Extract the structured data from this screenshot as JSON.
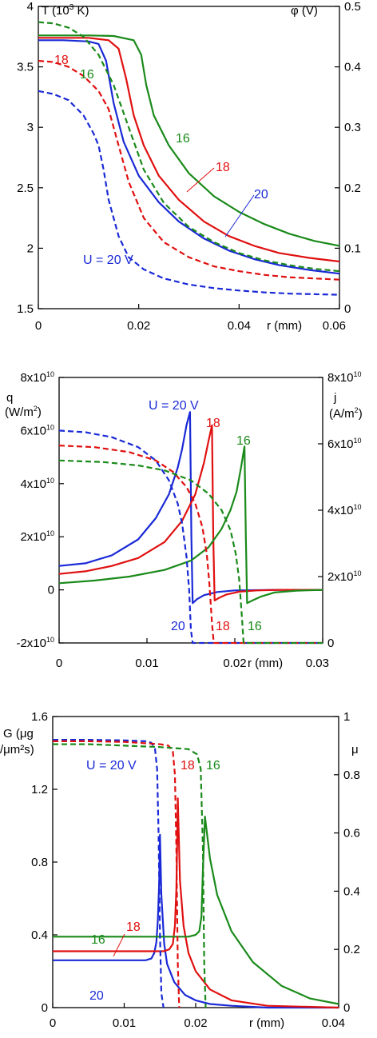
{
  "chart_data": [
    {
      "type": "line",
      "left_axis": {
        "label_parts": [
          "T (10",
          "3",
          " K)"
        ],
        "range": [
          1.5,
          4
        ],
        "ticks": [
          "1.5",
          "2",
          "2.5",
          "3",
          "3.5",
          "4"
        ]
      },
      "right_axis": {
        "label": "φ (V)",
        "range": [
          0,
          0.5
        ],
        "ticks": [
          "0",
          "0.1",
          "0.2",
          "0.3",
          "0.4",
          "0.5"
        ]
      },
      "x_axis": {
        "label": "r (mm)",
        "range": [
          0,
          0.06
        ],
        "ticks": [
          "0",
          "0.02",
          "0.04",
          "0.06"
        ]
      },
      "series": [
        {
          "name": "16",
          "quantity": "T",
          "axis": "left",
          "color": "#1a8a1a",
          "style": "solid",
          "x": [
            0,
            0.005,
            0.01,
            0.015,
            0.019,
            0.0205,
            0.0215,
            0.023,
            0.026,
            0.03,
            0.035,
            0.04,
            0.045,
            0.05,
            0.055,
            0.06
          ],
          "y": [
            3.76,
            3.76,
            3.76,
            3.755,
            3.72,
            3.6,
            3.35,
            3.1,
            2.85,
            2.62,
            2.43,
            2.3,
            2.2,
            2.12,
            2.06,
            2.02
          ]
        },
        {
          "name": "18",
          "quantity": "T",
          "axis": "left",
          "color": "#e01010",
          "style": "solid",
          "x": [
            0,
            0.005,
            0.01,
            0.014,
            0.016,
            0.0175,
            0.019,
            0.021,
            0.024,
            0.028,
            0.033,
            0.038,
            0.043,
            0.048,
            0.054,
            0.06
          ],
          "y": [
            3.74,
            3.74,
            3.74,
            3.72,
            3.65,
            3.4,
            3.1,
            2.85,
            2.6,
            2.4,
            2.22,
            2.1,
            2.02,
            1.96,
            1.92,
            1.89
          ]
        },
        {
          "name": "20",
          "quantity": "T",
          "axis": "left",
          "color": "#1a2ad6",
          "style": "solid",
          "x": [
            0,
            0.005,
            0.01,
            0.012,
            0.0135,
            0.015,
            0.017,
            0.02,
            0.024,
            0.028,
            0.033,
            0.038,
            0.043,
            0.048,
            0.054,
            0.06
          ],
          "y": [
            3.72,
            3.72,
            3.71,
            3.69,
            3.55,
            3.2,
            2.88,
            2.6,
            2.38,
            2.22,
            2.08,
            1.98,
            1.91,
            1.86,
            1.82,
            1.79
          ]
        },
        {
          "name": "16",
          "quantity": "φ",
          "axis": "right",
          "color": "#1a8a1a",
          "style": "dashed",
          "x": [
            0,
            0.003,
            0.006,
            0.009,
            0.012,
            0.015,
            0.018,
            0.021,
            0.025,
            0.03,
            0.035,
            0.04,
            0.045,
            0.05,
            0.055,
            0.06
          ],
          "y": [
            0.474,
            0.472,
            0.465,
            0.45,
            0.42,
            0.37,
            0.3,
            0.23,
            0.175,
            0.135,
            0.11,
            0.092,
            0.08,
            0.072,
            0.066,
            0.062
          ]
        },
        {
          "name": "18",
          "quantity": "φ",
          "axis": "right",
          "color": "#e01010",
          "style": "dashed",
          "x": [
            0,
            0.003,
            0.006,
            0.009,
            0.012,
            0.014,
            0.016,
            0.018,
            0.021,
            0.025,
            0.03,
            0.035,
            0.04,
            0.045,
            0.05,
            0.055,
            0.06
          ],
          "y": [
            0.41,
            0.408,
            0.4,
            0.385,
            0.36,
            0.33,
            0.27,
            0.21,
            0.15,
            0.11,
            0.085,
            0.07,
            0.062,
            0.056,
            0.052,
            0.05,
            0.048
          ]
        },
        {
          "name": "20",
          "quantity": "φ",
          "axis": "right",
          "color": "#1a2ad6",
          "style": "dashed",
          "x": [
            0,
            0.003,
            0.006,
            0.009,
            0.011,
            0.012,
            0.013,
            0.014,
            0.016,
            0.018,
            0.021,
            0.025,
            0.03,
            0.035,
            0.04,
            0.045,
            0.05,
            0.055,
            0.06
          ],
          "y": [
            0.36,
            0.355,
            0.345,
            0.32,
            0.29,
            0.27,
            0.23,
            0.18,
            0.12,
            0.085,
            0.065,
            0.05,
            0.04,
            0.034,
            0.03,
            0.027,
            0.025,
            0.024,
            0.023
          ]
        }
      ],
      "annotations": [
        "18",
        "16",
        "16",
        "18",
        "20",
        "U = 20 V"
      ]
    },
    {
      "type": "line",
      "left_axis": {
        "label": "q",
        "unit_parts": [
          "(W/m",
          "2",
          ")"
        ],
        "range": [
          -20000000000.0,
          80000000000.0
        ],
        "ticks": [
          {
            "m": "-2x10",
            "e": "10"
          },
          {
            "m": "0",
            "e": ""
          },
          {
            "m": "2x10",
            "e": "10"
          },
          {
            "m": "4x10",
            "e": "10"
          },
          {
            "m": "6x10",
            "e": "10"
          },
          {
            "m": "8x10",
            "e": "10"
          }
        ]
      },
      "right_axis": {
        "label": "j",
        "unit_parts": [
          "(A/m",
          "2",
          ")"
        ],
        "range": [
          0,
          80000000000.0
        ],
        "ticks": [
          {
            "m": "0",
            "e": ""
          },
          {
            "m": "2x10",
            "e": "10"
          },
          {
            "m": "4x10",
            "e": "10"
          },
          {
            "m": "6x10",
            "e": "10"
          },
          {
            "m": "8x10",
            "e": "10"
          }
        ]
      },
      "x_axis": {
        "label": "r (mm)",
        "range": [
          0,
          0.03
        ],
        "ticks": [
          "0",
          "0.01",
          "0.02",
          "0.03"
        ]
      },
      "series": [
        {
          "name": "20",
          "quantity": "q",
          "axis": "left",
          "color": "#1a2ad6",
          "style": "solid",
          "x": [
            0,
            0.003,
            0.006,
            0.009,
            0.011,
            0.0125,
            0.0135,
            0.014,
            0.0145,
            0.0149,
            0.01505,
            0.0152,
            0.0157,
            0.0165,
            0.018,
            0.02,
            0.025,
            0.03
          ],
          "y": [
            9000000000.0,
            10000000000.0,
            13000000000.0,
            19000000000.0,
            27000000000.0,
            36000000000.0,
            46000000000.0,
            53000000000.0,
            62000000000.0,
            67000000000.0,
            20000000000.0,
            -5000000000.0,
            -3500000000.0,
            -2000000000.0,
            -800000000.0,
            -200000000.0,
            0,
            0
          ]
        },
        {
          "name": "18",
          "quantity": "q",
          "axis": "left",
          "color": "#e01010",
          "style": "solid",
          "x": [
            0,
            0.003,
            0.006,
            0.009,
            0.012,
            0.014,
            0.0155,
            0.0165,
            0.017,
            0.0174,
            0.01755,
            0.0177,
            0.0182,
            0.019,
            0.0205,
            0.0225,
            0.025,
            0.03
          ],
          "y": [
            6000000000.0,
            7000000000.0,
            9000000000.0,
            12000000000.0,
            18000000000.0,
            26000000000.0,
            36000000000.0,
            48000000000.0,
            56000000000.0,
            62000000000.0,
            20000000000.0,
            -4000000000.0,
            -3000000000.0,
            -1800000000.0,
            -700000000.0,
            -200000000.0,
            0,
            0
          ]
        },
        {
          "name": "16",
          "quantity": "q",
          "axis": "left",
          "color": "#1a8a1a",
          "style": "solid",
          "x": [
            0,
            0.004,
            0.008,
            0.012,
            0.015,
            0.017,
            0.0185,
            0.0195,
            0.0202,
            0.0207,
            0.0211,
            0.02125,
            0.0214,
            0.022,
            0.023,
            0.0245,
            0.027,
            0.03
          ],
          "y": [
            2500000000.0,
            3500000000.0,
            5000000000.0,
            7500000000.0,
            11000000000.0,
            16000000000.0,
            23000000000.0,
            30000000000.0,
            37000000000.0,
            46000000000.0,
            54000000000.0,
            20000000000.0,
            -5000000000.0,
            -4000000000.0,
            -2500000000.0,
            -1000000000.0,
            -300000000.0,
            0
          ]
        },
        {
          "name": "20",
          "quantity": "j",
          "axis": "right",
          "color": "#1a2ad6",
          "style": "dashed",
          "x": [
            0,
            0.003,
            0.006,
            0.009,
            0.011,
            0.0125,
            0.0135,
            0.014,
            0.0145,
            0.0148,
            0.015,
            0.0152,
            0.02,
            0.03
          ],
          "y": [
            64000000000.0,
            63500000000.0,
            62000000000.0,
            59000000000.0,
            55000000000.0,
            49000000000.0,
            42000000000.0,
            36000000000.0,
            26000000000.0,
            16000000000.0,
            4000000000.0,
            0,
            0,
            0
          ]
        },
        {
          "name": "18",
          "quantity": "j",
          "axis": "right",
          "color": "#e01010",
          "style": "dashed",
          "x": [
            0,
            0.004,
            0.008,
            0.011,
            0.013,
            0.0145,
            0.0155,
            0.0163,
            0.0168,
            0.0171,
            0.0174,
            0.0176,
            0.022,
            0.03
          ],
          "y": [
            59500000000.0,
            59000000000.0,
            57500000000.0,
            55000000000.0,
            51500000000.0,
            47000000000.0,
            42000000000.0,
            35000000000.0,
            27000000000.0,
            18000000000.0,
            6000000000.0,
            0,
            0,
            0
          ]
        },
        {
          "name": "16",
          "quantity": "j",
          "axis": "right",
          "color": "#1a8a1a",
          "style": "dashed",
          "x": [
            0,
            0.005,
            0.009,
            0.012,
            0.015,
            0.017,
            0.0185,
            0.0195,
            0.0201,
            0.0205,
            0.0208,
            0.021,
            0.025,
            0.03
          ],
          "y": [
            55000000000.0,
            54500000000.0,
            53500000000.0,
            52000000000.0,
            49000000000.0,
            45000000000.0,
            40000000000.0,
            34000000000.0,
            27000000000.0,
            19000000000.0,
            8000000000.0,
            0,
            0,
            0
          ]
        }
      ],
      "annotations": [
        "U = 20 V",
        "18",
        "16",
        "20",
        "18",
        "16"
      ]
    },
    {
      "type": "line",
      "left_axis": {
        "label_lines": [
          "G (μg",
          "/μm²s)"
        ],
        "range": [
          0,
          1.6
        ],
        "ticks": [
          "0",
          "0.4",
          "0.8",
          "1.2",
          "1.6"
        ]
      },
      "right_axis": {
        "label": "μ",
        "range": [
          0,
          1
        ],
        "ticks": [
          "0",
          "0.2",
          "0.4",
          "0.6",
          "0.8",
          "1"
        ]
      },
      "x_axis": {
        "label": "r (mm)",
        "range": [
          0,
          0.04
        ],
        "ticks": [
          "0",
          "0.01",
          "0.02",
          "0.04"
        ]
      },
      "series": [
        {
          "name": "20",
          "quantity": "G",
          "axis": "left",
          "color": "#1a2ad6",
          "style": "solid",
          "x": [
            0,
            0.005,
            0.01,
            0.013,
            0.0138,
            0.0142,
            0.0145,
            0.0147,
            0.0149,
            0.015,
            0.0152,
            0.0156,
            0.016,
            0.017,
            0.0185,
            0.02,
            0.022,
            0.025,
            0.03,
            0.04
          ],
          "y": [
            0.26,
            0.26,
            0.26,
            0.26,
            0.27,
            0.3,
            0.36,
            0.48,
            0.7,
            0.95,
            0.62,
            0.35,
            0.24,
            0.14,
            0.07,
            0.04,
            0.02,
            0.01,
            0,
            0
          ]
        },
        {
          "name": "18",
          "quantity": "G",
          "axis": "left",
          "color": "#e01010",
          "style": "solid",
          "x": [
            0,
            0.005,
            0.01,
            0.0155,
            0.0163,
            0.0168,
            0.0171,
            0.0173,
            0.0174,
            0.0175,
            0.0178,
            0.0183,
            0.019,
            0.02,
            0.022,
            0.025,
            0.03,
            0.04
          ],
          "y": [
            0.31,
            0.31,
            0.31,
            0.31,
            0.32,
            0.35,
            0.45,
            0.65,
            0.88,
            1.15,
            0.7,
            0.45,
            0.3,
            0.2,
            0.1,
            0.04,
            0.01,
            0
          ]
        },
        {
          "name": "16",
          "quantity": "G",
          "axis": "left",
          "color": "#1a8a1a",
          "style": "solid",
          "x": [
            0,
            0.005,
            0.01,
            0.015,
            0.019,
            0.02,
            0.0205,
            0.0208,
            0.021,
            0.0213,
            0.022,
            0.023,
            0.025,
            0.028,
            0.032,
            0.036,
            0.04
          ],
          "y": [
            0.39,
            0.39,
            0.39,
            0.39,
            0.39,
            0.4,
            0.42,
            0.5,
            0.75,
            1.05,
            0.82,
            0.62,
            0.42,
            0.25,
            0.12,
            0.05,
            0.02
          ]
        },
        {
          "name": "20",
          "quantity": "μ",
          "axis": "right",
          "color": "#1a2ad6",
          "style": "dashed",
          "x": [
            0,
            0.005,
            0.01,
            0.013,
            0.0138,
            0.0143,
            0.0146,
            0.0148,
            0.015,
            0.0152,
            0.0155
          ],
          "y": [
            0.92,
            0.92,
            0.918,
            0.915,
            0.91,
            0.89,
            0.82,
            0.6,
            0.25,
            0.05,
            0
          ]
        },
        {
          "name": "18",
          "quantity": "μ",
          "axis": "right",
          "color": "#e01010",
          "style": "dashed",
          "x": [
            0,
            0.005,
            0.01,
            0.015,
            0.0162,
            0.0168,
            0.0171,
            0.0173,
            0.0175,
            0.0177
          ],
          "y": [
            0.915,
            0.915,
            0.913,
            0.905,
            0.9,
            0.88,
            0.8,
            0.55,
            0.15,
            0
          ]
        },
        {
          "name": "16",
          "quantity": "μ",
          "axis": "right",
          "color": "#1a8a1a",
          "style": "dashed",
          "x": [
            0,
            0.005,
            0.01,
            0.015,
            0.019,
            0.0202,
            0.0207,
            0.021,
            0.0212,
            0.0214
          ],
          "y": [
            0.905,
            0.905,
            0.9,
            0.895,
            0.888,
            0.87,
            0.82,
            0.55,
            0.15,
            0
          ]
        }
      ],
      "annotations": [
        "U = 20 V",
        "18",
        "16",
        "16",
        "18",
        "20"
      ]
    }
  ]
}
